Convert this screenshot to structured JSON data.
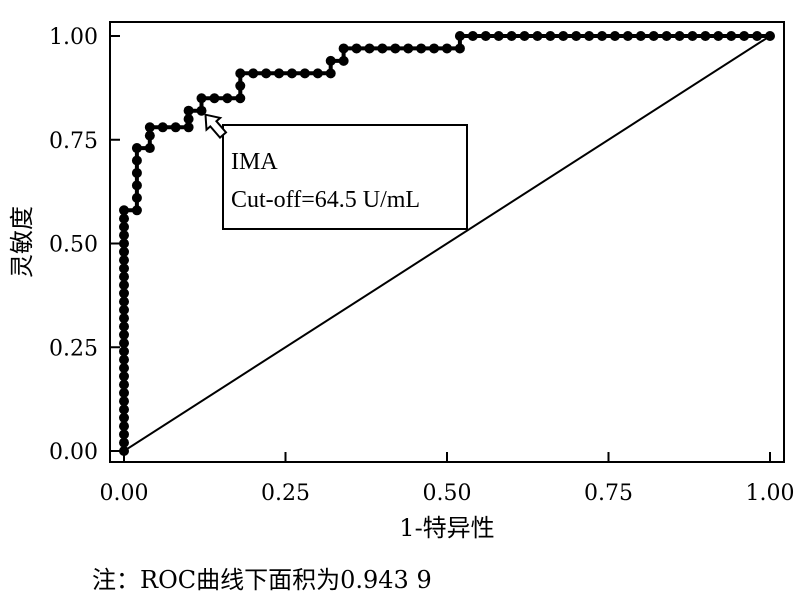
{
  "chart_data": {
    "type": "line",
    "title": "",
    "xlabel": "1-特异性",
    "ylabel": "灵敏度",
    "xlim": [
      0,
      1
    ],
    "ylim": [
      0,
      1
    ],
    "x_ticks": [
      "0.00",
      "0.25",
      "0.50",
      "0.75",
      "1.00"
    ],
    "y_ticks": [
      "0.00",
      "0.25",
      "0.50",
      "0.75",
      "1.00"
    ],
    "grid": false,
    "series": [
      {
        "name": "",
        "points": [
          [
            0.0,
            0.0
          ],
          [
            0.0,
            0.02
          ],
          [
            0.0,
            0.04
          ],
          [
            0.0,
            0.06
          ],
          [
            0.0,
            0.08
          ],
          [
            0.0,
            0.1
          ],
          [
            0.0,
            0.12
          ],
          [
            0.0,
            0.14
          ],
          [
            0.0,
            0.16
          ],
          [
            0.0,
            0.18
          ],
          [
            0.0,
            0.2
          ],
          [
            0.0,
            0.22
          ],
          [
            0.0,
            0.24
          ],
          [
            0.0,
            0.26
          ],
          [
            0.0,
            0.28
          ],
          [
            0.0,
            0.3
          ],
          [
            0.0,
            0.32
          ],
          [
            0.0,
            0.34
          ],
          [
            0.0,
            0.36
          ],
          [
            0.0,
            0.38
          ],
          [
            0.0,
            0.4
          ],
          [
            0.0,
            0.42
          ],
          [
            0.0,
            0.44
          ],
          [
            0.0,
            0.46
          ],
          [
            0.0,
            0.48
          ],
          [
            0.0,
            0.5
          ],
          [
            0.0,
            0.52
          ],
          [
            0.0,
            0.54
          ],
          [
            0.0,
            0.56
          ],
          [
            0.0,
            0.58
          ],
          [
            0.02,
            0.58
          ],
          [
            0.02,
            0.61
          ],
          [
            0.02,
            0.64
          ],
          [
            0.02,
            0.67
          ],
          [
            0.02,
            0.7
          ],
          [
            0.02,
            0.73
          ],
          [
            0.04,
            0.73
          ],
          [
            0.04,
            0.76
          ],
          [
            0.04,
            0.78
          ],
          [
            0.06,
            0.78
          ],
          [
            0.08,
            0.78
          ],
          [
            0.1,
            0.78
          ],
          [
            0.1,
            0.8
          ],
          [
            0.1,
            0.82
          ],
          [
            0.12,
            0.82
          ],
          [
            0.12,
            0.85
          ],
          [
            0.14,
            0.85
          ],
          [
            0.16,
            0.85
          ],
          [
            0.18,
            0.85
          ],
          [
            0.18,
            0.88
          ],
          [
            0.18,
            0.91
          ],
          [
            0.2,
            0.91
          ],
          [
            0.22,
            0.91
          ],
          [
            0.24,
            0.91
          ],
          [
            0.26,
            0.91
          ],
          [
            0.28,
            0.91
          ],
          [
            0.3,
            0.91
          ],
          [
            0.32,
            0.91
          ],
          [
            0.32,
            0.94
          ],
          [
            0.34,
            0.94
          ],
          [
            0.34,
            0.97
          ],
          [
            0.36,
            0.97
          ],
          [
            0.38,
            0.97
          ],
          [
            0.4,
            0.97
          ],
          [
            0.42,
            0.97
          ],
          [
            0.44,
            0.97
          ],
          [
            0.46,
            0.97
          ],
          [
            0.48,
            0.97
          ],
          [
            0.5,
            0.97
          ],
          [
            0.52,
            0.97
          ],
          [
            0.52,
            1.0
          ],
          [
            0.54,
            1.0
          ],
          [
            0.56,
            1.0
          ],
          [
            0.58,
            1.0
          ],
          [
            0.6,
            1.0
          ],
          [
            0.62,
            1.0
          ],
          [
            0.64,
            1.0
          ],
          [
            0.66,
            1.0
          ],
          [
            0.68,
            1.0
          ],
          [
            0.7,
            1.0
          ],
          [
            0.72,
            1.0
          ],
          [
            0.74,
            1.0
          ],
          [
            0.76,
            1.0
          ],
          [
            0.78,
            1.0
          ],
          [
            0.8,
            1.0
          ],
          [
            0.82,
            1.0
          ],
          [
            0.84,
            1.0
          ],
          [
            0.86,
            1.0
          ],
          [
            0.88,
            1.0
          ],
          [
            0.9,
            1.0
          ],
          [
            0.92,
            1.0
          ],
          [
            0.94,
            1.0
          ],
          [
            0.96,
            1.0
          ],
          [
            0.98,
            1.0
          ],
          [
            1.0,
            1.0
          ]
        ]
      }
    ],
    "reference_line": [
      [
        0,
        0
      ],
      [
        1,
        1
      ]
    ],
    "annotation": {
      "lines": [
        "IMA",
        "Cut-off=64.5 U/mL"
      ],
      "arrow_target": [
        0.12,
        0.82
      ]
    }
  },
  "note": "注：ROC曲线下面积为0.943 9"
}
